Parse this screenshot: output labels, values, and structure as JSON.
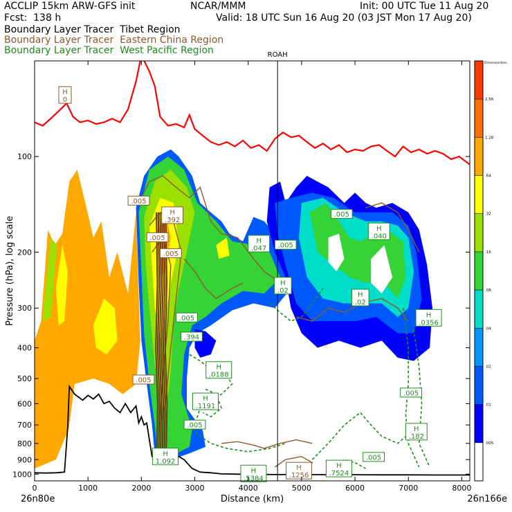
{
  "header": {
    "title_line1": "ACCLIP 15km ARW-GFS init",
    "center": "NCAR/MMM",
    "init": "Init: 00 UTC Tue 11 Aug 20",
    "fcst": "Fcst:  138 h",
    "valid": "Valid: 18 UTC Sun 16 Aug 20 (03 JST Mon 17 Aug 20)",
    "tracers": [
      {
        "label": "Boundary Layer Tracer  Tibet Region",
        "color": "#000000"
      },
      {
        "label": "Boundary Layer Tracer  Eastern China Region",
        "color": "#8b5a2b"
      },
      {
        "label": "Boundary Layer Tracer  West Pacific Region",
        "color": "#1e8c1e"
      }
    ]
  },
  "chart_data": {
    "type": "heatmap",
    "xlabel": "Distance (km)",
    "ylabel": "Pressure (hPa), log scale",
    "x_ticks": [
      0,
      1000,
      2000,
      3000,
      4000,
      5000,
      6000,
      7000,
      8000
    ],
    "xlim": [
      0,
      8150
    ],
    "y_ticks": [
      100,
      200,
      300,
      400,
      500,
      600,
      700,
      800,
      900,
      1000
    ],
    "ylim": [
      1050,
      50
    ],
    "y_scale": "log",
    "left_endpoint": "26n80e",
    "right_endpoint": "26n166e",
    "marker": {
      "label": "ROAH",
      "x": 4550
    },
    "colorbar": {
      "title": "Dimensionless",
      "levels": [
        ".005",
        ".01",
        ".02",
        ".04",
        ".08",
        ".16",
        ".32",
        ".64",
        "1.28",
        "2.56"
      ],
      "colors": [
        "#ffffff",
        "#0000ff",
        "#0059ff",
        "#0096ff",
        "#00ddc8",
        "#35d335",
        "#9be000",
        "#ffff00",
        "#ffa800",
        "#ff7000",
        "#ff3a00"
      ]
    },
    "tropopause_color": "#ff0000",
    "terrain_color": "#000000",
    "annotations": [
      {
        "text": "H",
        "sub": "0",
        "x": 570,
        "p": 64,
        "color": "#8b5a2b"
      },
      {
        "text": ".005",
        "x": 1950,
        "p": 138,
        "color": "#8b5a2b"
      },
      {
        "text": "H",
        "sub": ".392",
        "x": 2580,
        "p": 153,
        "color": "#8b5a2b"
      },
      {
        "text": ".005",
        "x": 2300,
        "p": 180,
        "color": "#8b5a2b"
      },
      {
        "text": ".005",
        "x": 2550,
        "p": 202,
        "color": "#8b5a2b"
      },
      {
        "text": ".005",
        "x": 2850,
        "p": 322,
        "color": "#1e8c1e"
      },
      {
        "text": ".394",
        "x": 2940,
        "p": 370,
        "color": "#1e8c1e"
      },
      {
        "text": "H",
        "sub": ".0188",
        "x": 3450,
        "p": 470,
        "color": "#1e8c1e"
      },
      {
        "text": ".005",
        "x": 2040,
        "p": 505,
        "color": "#8b5a2b"
      },
      {
        "text": "H",
        "sub": ".1191",
        "x": 3200,
        "p": 590,
        "color": "#1e8c1e"
      },
      {
        "text": ".005",
        "x": 3000,
        "p": 700,
        "color": "#1e8c1e"
      },
      {
        "text": "H",
        "sub": "1.092",
        "x": 2450,
        "p": 880,
        "color": "#1e8c1e"
      },
      {
        "text": "H",
        "sub": ".5384",
        "x": 4100,
        "p": 995,
        "color": "#1e8c1e"
      },
      {
        "text": "H",
        "sub": ".1256",
        "x": 4950,
        "p": 975,
        "color": "#8b5a2b"
      },
      {
        "text": "H",
        "sub": ".7524",
        "x": 5700,
        "p": 960,
        "color": "#1e8c1e"
      },
      {
        "text": ".005",
        "x": 6350,
        "p": 885,
        "color": "#1e8c1e"
      },
      {
        "text": "H",
        "sub": ".182",
        "x": 7150,
        "p": 735,
        "color": "#1e8c1e"
      },
      {
        "text": ".005",
        "x": 7050,
        "p": 555,
        "color": "#1e8c1e"
      },
      {
        "text": "H",
        "sub": ".0356",
        "x": 7380,
        "p": 322,
        "color": "#1e8c1e"
      },
      {
        "text": ".005",
        "x": 5750,
        "p": 152,
        "color": "#1e8c1e"
      },
      {
        "text": "H",
        "sub": ".040",
        "x": 6450,
        "p": 172,
        "color": "#1e8c1e"
      },
      {
        "text": "H",
        "sub": ".047",
        "x": 4200,
        "p": 188,
        "color": "#1e8c1e"
      },
      {
        "text": ".005",
        "x": 4700,
        "p": 190,
        "color": "#1e8c1e"
      },
      {
        "text": "H",
        "sub": ".02",
        "x": 6100,
        "p": 278,
        "color": "#1e8c1e"
      },
      {
        "text": "H",
        "sub": ".02",
        "x": 4650,
        "p": 255,
        "color": "#1e8c1e"
      }
    ]
  }
}
